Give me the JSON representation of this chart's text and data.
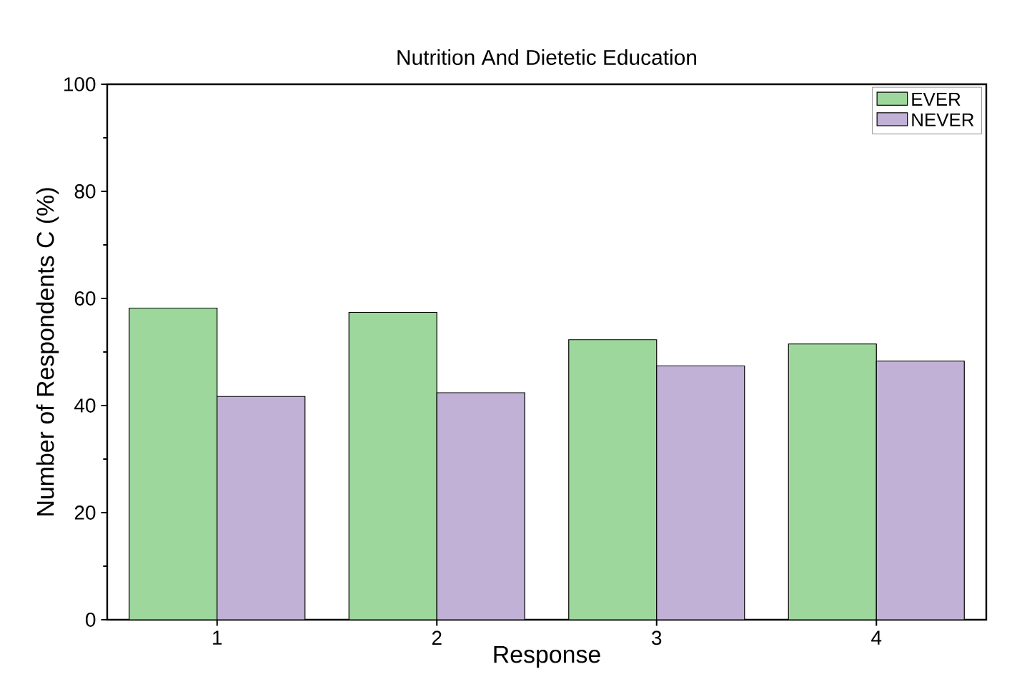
{
  "chart_data": {
    "type": "bar",
    "title": "Nutrition And Dietetic Education",
    "xlabel": "Response",
    "ylabel": "Number of Respondents C (%)",
    "categories": [
      "1",
      "2",
      "3",
      "4"
    ],
    "series": [
      {
        "name": "EVER",
        "color": "#9dd79c",
        "values": [
          58.2,
          57.4,
          52.3,
          51.5
        ]
      },
      {
        "name": "NEVER",
        "color": "#c2b1d7",
        "values": [
          41.7,
          42.4,
          47.4,
          48.3
        ]
      }
    ],
    "ylim": [
      0,
      100
    ],
    "yticks": [
      0,
      20,
      40,
      60,
      80,
      100
    ],
    "grid": false,
    "legend": "top right"
  }
}
